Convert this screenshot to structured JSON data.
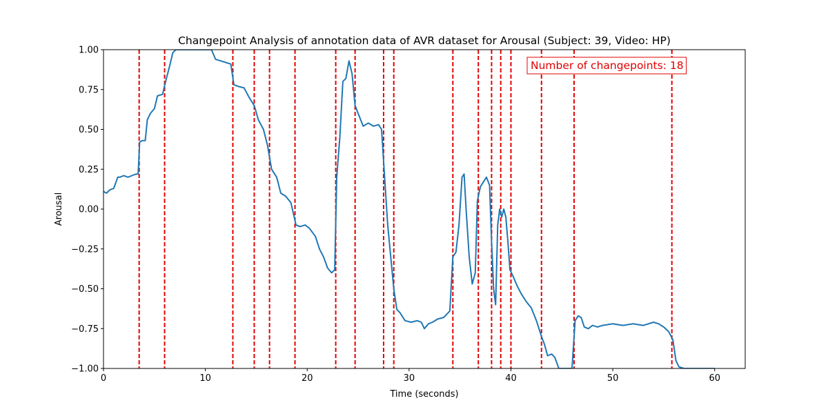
{
  "chart_data": {
    "type": "line",
    "title": "Changepoint Analysis of annotation data of AVR dataset for Arousal (Subject: 39, Video: HP)",
    "xlabel": "Time (seconds)",
    "ylabel": "Arousal",
    "xlim": [
      0,
      63
    ],
    "ylim": [
      -1.0,
      1.0
    ],
    "x_ticks": [
      0,
      10,
      20,
      30,
      40,
      50,
      60
    ],
    "x_tick_labels": [
      "0",
      "10",
      "20",
      "30",
      "40",
      "50",
      "60"
    ],
    "y_ticks": [
      -1.0,
      -0.75,
      -0.5,
      -0.25,
      0.0,
      0.25,
      0.5,
      0.75,
      1.0
    ],
    "y_tick_labels": [
      "−1.00",
      "−0.75",
      "−0.50",
      "−0.25",
      "0.00",
      "0.25",
      "0.50",
      "0.75",
      "1.00"
    ],
    "grid": false,
    "colors": {
      "line": "#1f77b4",
      "changepoint": "#e00000",
      "annotation": "#e00000"
    },
    "annotation": "Number of changepoints: 18",
    "changepoints": [
      3.5,
      6.0,
      12.7,
      14.8,
      16.3,
      18.8,
      22.8,
      24.7,
      27.5,
      28.5,
      34.3,
      36.8,
      38.1,
      39.0,
      40.0,
      43.0,
      46.2,
      55.8
    ],
    "series": [
      {
        "x": [
          0,
          0.3,
          0.6,
          1.0,
          1.4,
          1.6,
          2.0,
          2.4,
          2.8,
          3.2,
          3.4,
          3.55,
          3.8,
          4.1,
          4.3,
          4.6,
          5.0,
          5.3,
          5.8,
          6.1,
          6.5,
          6.8,
          7.1,
          7.5,
          8.0,
          9.0,
          10.0,
          10.6,
          11.0,
          11.5,
          12.0,
          12.5,
          12.8,
          13.2,
          13.8,
          14.3,
          14.8,
          15.2,
          15.7,
          16.1,
          16.5,
          17.0,
          17.4,
          17.9,
          18.4,
          18.9,
          19.3,
          19.8,
          20.2,
          20.8,
          21.2,
          21.6,
          22.0,
          22.4,
          22.7,
          22.9,
          23.2,
          23.5,
          23.8,
          24.1,
          24.4,
          24.7,
          25.0,
          25.5,
          26.0,
          26.5,
          27.0,
          27.3,
          27.6,
          27.9,
          28.2,
          28.5,
          28.8,
          29.1,
          29.6,
          30.2,
          30.8,
          31.2,
          31.5,
          31.9,
          32.3,
          32.8,
          33.4,
          34.0,
          34.3,
          34.6,
          34.9,
          35.2,
          35.4,
          35.6,
          35.9,
          36.2,
          36.5,
          36.7,
          37.0,
          37.3,
          37.6,
          37.9,
          38.1,
          38.3,
          38.5,
          38.7,
          38.9,
          39.1,
          39.3,
          39.5,
          39.7,
          39.9,
          40.2,
          40.6,
          41.0,
          41.5,
          42.0,
          42.5,
          43.0,
          43.3,
          43.6,
          44.0,
          44.3,
          44.7,
          45.0,
          45.3,
          45.6,
          46.0,
          46.3,
          46.6,
          46.9,
          47.2,
          47.6,
          48.0,
          48.5,
          49.0,
          50.0,
          51.0,
          52.0,
          53.0,
          54.0,
          54.5,
          55.0,
          55.5,
          55.9,
          56.2,
          56.5,
          57.0,
          58.0,
          59.0,
          60.0
        ],
        "y": [
          0.11,
          0.1,
          0.12,
          0.13,
          0.2,
          0.2,
          0.21,
          0.2,
          0.21,
          0.22,
          0.22,
          0.42,
          0.43,
          0.43,
          0.56,
          0.6,
          0.63,
          0.71,
          0.72,
          0.8,
          0.9,
          0.98,
          1.0,
          1.0,
          1.0,
          1.0,
          1.0,
          1.0,
          0.94,
          0.93,
          0.92,
          0.91,
          0.78,
          0.77,
          0.76,
          0.7,
          0.65,
          0.56,
          0.5,
          0.4,
          0.25,
          0.2,
          0.1,
          0.08,
          0.04,
          -0.1,
          -0.11,
          -0.1,
          -0.12,
          -0.17,
          -0.25,
          -0.3,
          -0.37,
          -0.4,
          -0.38,
          0.2,
          0.45,
          0.8,
          0.82,
          0.93,
          0.85,
          0.65,
          0.6,
          0.52,
          0.54,
          0.52,
          0.53,
          0.5,
          0.2,
          -0.1,
          -0.3,
          -0.5,
          -0.63,
          -0.65,
          -0.7,
          -0.71,
          -0.7,
          -0.71,
          -0.75,
          -0.72,
          -0.71,
          -0.69,
          -0.68,
          -0.64,
          -0.3,
          -0.27,
          -0.1,
          0.2,
          0.22,
          0.0,
          -0.3,
          -0.47,
          -0.4,
          0.05,
          0.14,
          0.17,
          0.2,
          0.15,
          -0.2,
          -0.5,
          -0.6,
          -0.1,
          0.0,
          -0.05,
          0.0,
          -0.05,
          -0.2,
          -0.38,
          -0.42,
          -0.48,
          -0.53,
          -0.58,
          -0.62,
          -0.7,
          -0.8,
          -0.85,
          -0.92,
          -0.91,
          -0.93,
          -1.0,
          -1.0,
          -1.0,
          -1.0,
          -1.0,
          -0.7,
          -0.67,
          -0.68,
          -0.74,
          -0.75,
          -0.73,
          -0.74,
          -0.73,
          -0.72,
          -0.73,
          -0.72,
          -0.73,
          -0.71,
          -0.72,
          -0.74,
          -0.77,
          -0.82,
          -0.95,
          -0.99,
          -1.0,
          -1.0,
          -1.0,
          -1.0
        ]
      }
    ]
  }
}
